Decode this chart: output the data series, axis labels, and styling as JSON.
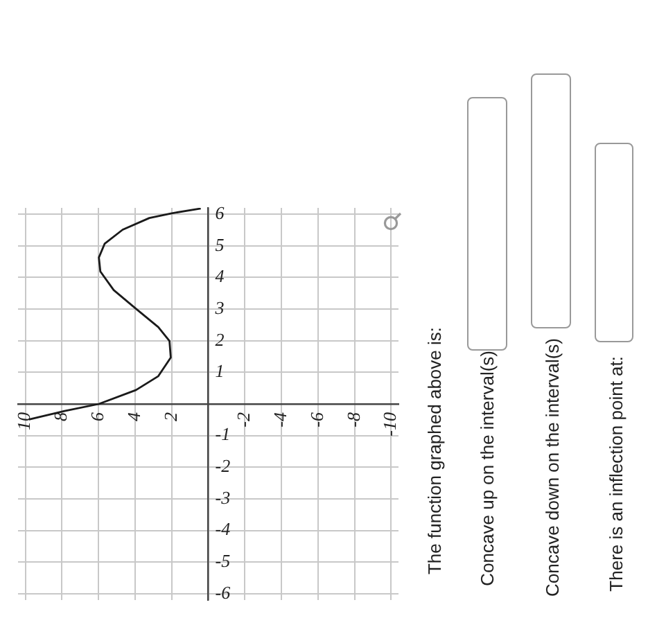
{
  "chart_data": {
    "type": "line",
    "x": [
      9.8,
      7.85,
      5.98,
      3.95,
      2.73,
      2.05,
      2.12,
      2.73,
      3.95,
      5.17,
      5.9,
      5.98,
      5.66,
      4.68,
      3.22,
      2.0,
      0.41
    ],
    "series": [
      {
        "color": "#1a1a1a",
        "values": [
          -0.49,
          -0.22,
          0,
          0.44,
          0.88,
          1.47,
          1.99,
          2.43,
          3.01,
          3.6,
          4.19,
          4.63,
          5.07,
          5.51,
          5.88,
          6.03,
          6.18
        ]
      }
    ],
    "xlim": [
      10.4,
      -10.4
    ],
    "xticks": [
      10,
      8,
      6,
      4,
      2,
      {
        "value": 0,
        "label": null
      },
      -2,
      -4,
      -6,
      -8,
      -10
    ],
    "ylim": [
      -6.2,
      6.2
    ],
    "yticks": [
      -6,
      -5,
      -4,
      -3,
      -2,
      -1,
      {
        "value": 0,
        "label": null
      },
      1,
      2,
      3,
      4,
      5,
      6
    ],
    "grid": true,
    "marker": "none",
    "line_style": "solid",
    "annotations": [
      "The function graphed above is:",
      "Concave up on the interval(s)",
      "Concave down on the interval(s)",
      "There is an inflection point at:"
    ]
  }
}
